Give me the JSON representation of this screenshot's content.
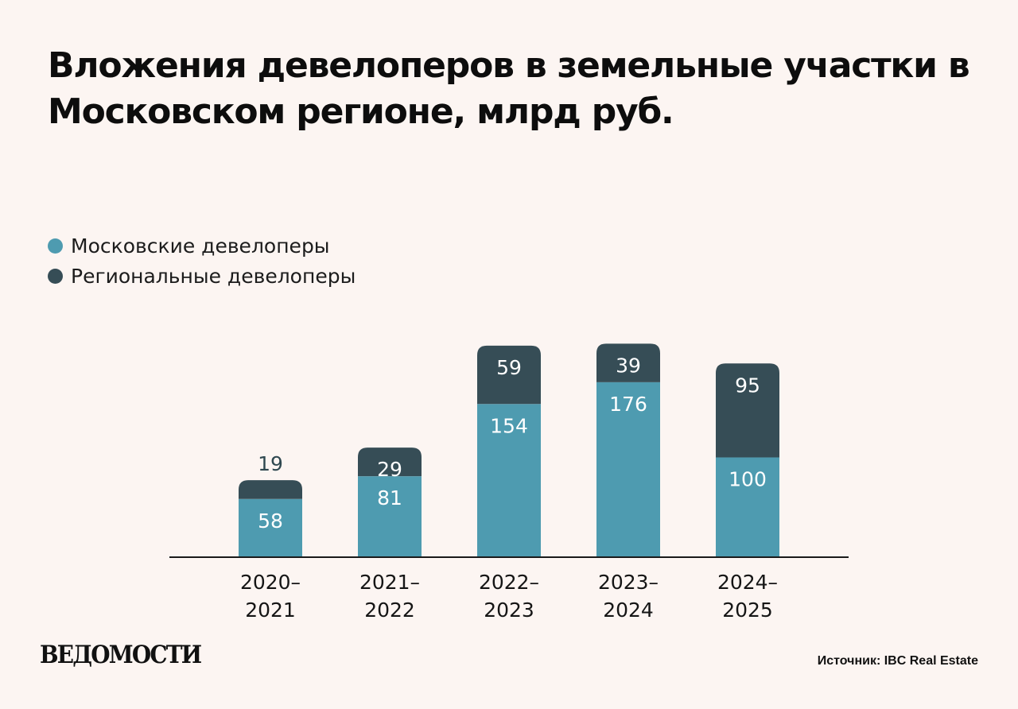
{
  "title": "Вложения девелоперов в земельные участки в Московском регионе, млрд руб.",
  "legend": [
    {
      "label": "Московские девелоперы",
      "color": "#4e9bb0"
    },
    {
      "label": "Региональные девелоперы",
      "color": "#364d56"
    }
  ],
  "chart_data": {
    "type": "bar",
    "stacked": true,
    "categories": [
      "2020–\n2021",
      "2021–\n2022",
      "2022–\n2023",
      "2023–\n2024",
      "2024–\n2025"
    ],
    "series": [
      {
        "name": "Московские девелоперы",
        "color": "#4e9bb0",
        "values": [
          58,
          81,
          154,
          176,
          100
        ]
      },
      {
        "name": "Региональные девелоперы",
        "color": "#364d56",
        "values": [
          19,
          29,
          59,
          39,
          95
        ]
      }
    ],
    "ylim": [
      0,
      215
    ],
    "grid": false,
    "legend_position": "top-left"
  },
  "logo": "ВЕДОМОСТИ",
  "source": "Источник: IBC Real Estate"
}
